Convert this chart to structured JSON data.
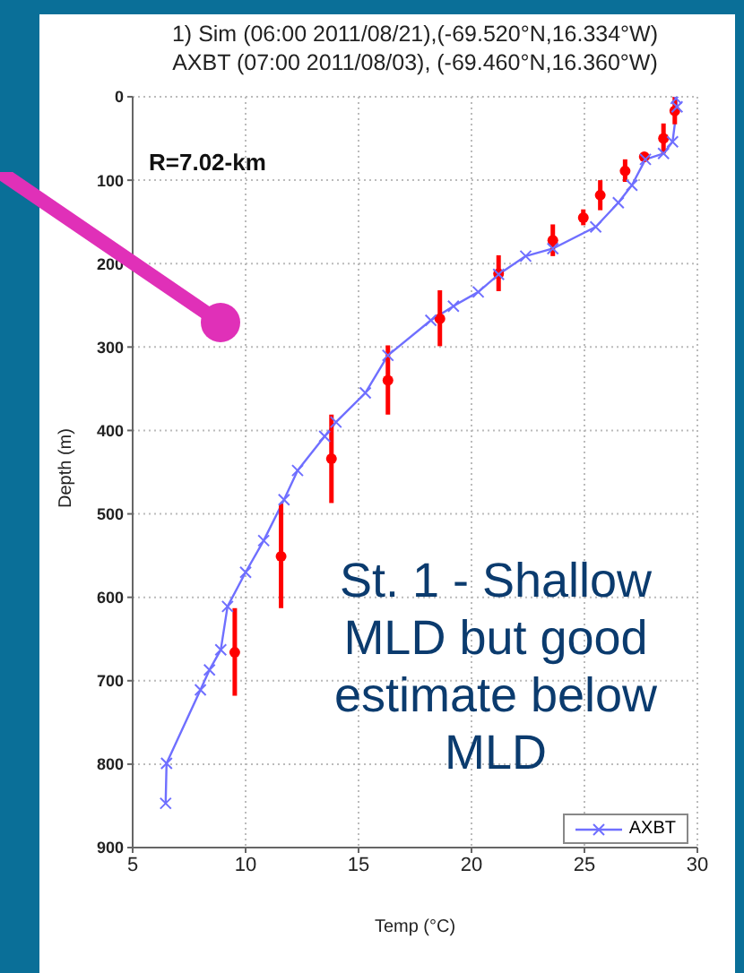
{
  "chart_data": {
    "type": "line",
    "title": "1) Sim (06:00 2011/08/21),(-69.520°N,16.334°W)",
    "subtitle": "AXBT (07:00 2011/08/03), (-69.460°N,16.360°W)",
    "xlabel": "Temp (°C)",
    "ylabel": "Depth (m)",
    "xlim": [
      5,
      30
    ],
    "xticks": [
      5,
      10,
      15,
      20,
      25,
      30
    ],
    "ylim": [
      900,
      0
    ],
    "yticks": [
      0,
      100,
      200,
      300,
      400,
      500,
      600,
      700,
      800,
      900
    ],
    "grid": true,
    "legend": "bottom right",
    "marker": "cross",
    "annotations": [
      "R=7.02-km",
      "St. 1 - Shallow MLD but good estimate below MLD"
    ],
    "series": [
      {
        "name": "AXBT",
        "color": "#6f6fff",
        "x": [
          29.06,
          29.1,
          28.9,
          28.5,
          27.7,
          27.1,
          26.5,
          25.5,
          23.6,
          22.4,
          21.2,
          20.3,
          19.2,
          18.2,
          16.3,
          15.3,
          14.0,
          13.5,
          12.3,
          11.7,
          10.8,
          10.0,
          9.2,
          8.9,
          8.4,
          8.0,
          6.5,
          6.46
        ],
        "values": [
          2,
          12,
          54,
          68,
          75,
          106,
          127,
          156,
          182,
          191,
          213,
          234,
          251,
          268,
          310,
          355,
          390,
          407,
          448,
          483,
          532,
          570,
          611,
          663,
          687,
          711,
          799,
          847
        ]
      },
      {
        "type": "scatter",
        "marker": "circle",
        "color": "#ff0000",
        "x": [
          29.0,
          28.5,
          27.65,
          26.8,
          25.7,
          24.95,
          23.6,
          21.2,
          18.6,
          16.3,
          13.8,
          11.57,
          9.52
        ],
        "values": [
          17,
          50,
          72,
          89,
          118,
          145,
          172,
          212,
          266,
          340,
          434,
          551,
          666
        ],
        "errors": [
          [
            0,
            33
          ],
          [
            32,
            68
          ],
          [
            68,
            76
          ],
          [
            75,
            102
          ],
          [
            100,
            136
          ],
          [
            135,
            154
          ],
          [
            153,
            191
          ],
          [
            190,
            233
          ],
          [
            232,
            299
          ],
          [
            298,
            381
          ],
          [
            381,
            487
          ],
          [
            488,
            613
          ],
          [
            613,
            718
          ]
        ]
      }
    ]
  }
}
